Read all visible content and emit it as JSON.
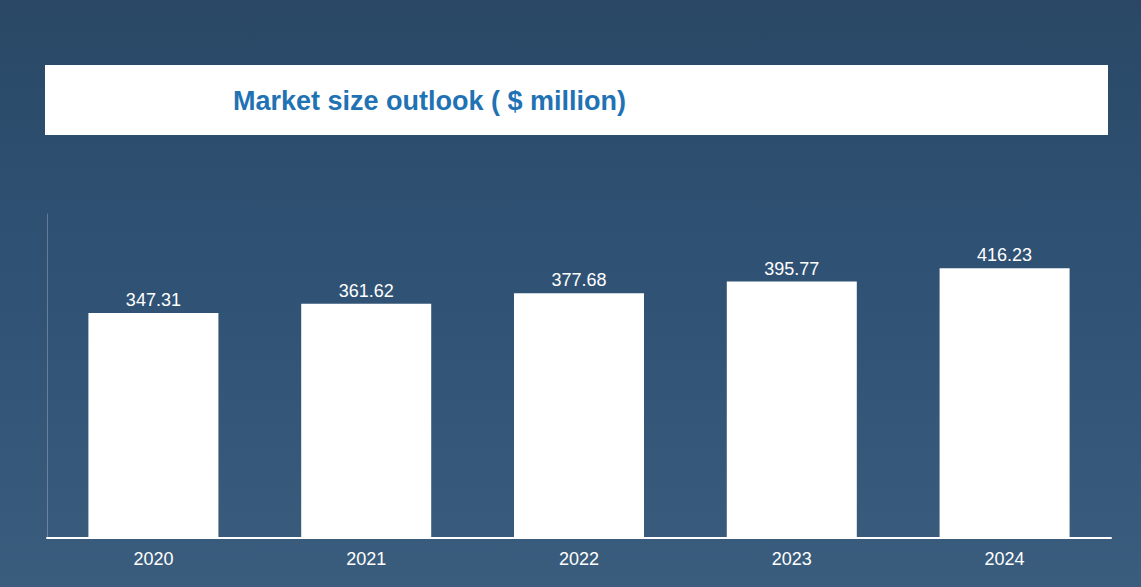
{
  "chart_data": {
    "type": "bar",
    "title": "Market size outlook ( $ million)",
    "categories": [
      "2020",
      "2021",
      "2022",
      "2023",
      "2024"
    ],
    "values": [
      347.31,
      361.62,
      377.68,
      395.77,
      416.23
    ],
    "color": "#ffffff",
    "ylim": [
      0,
      500
    ],
    "grid": false,
    "data_labels": true,
    "tick_labels": "x"
  }
}
